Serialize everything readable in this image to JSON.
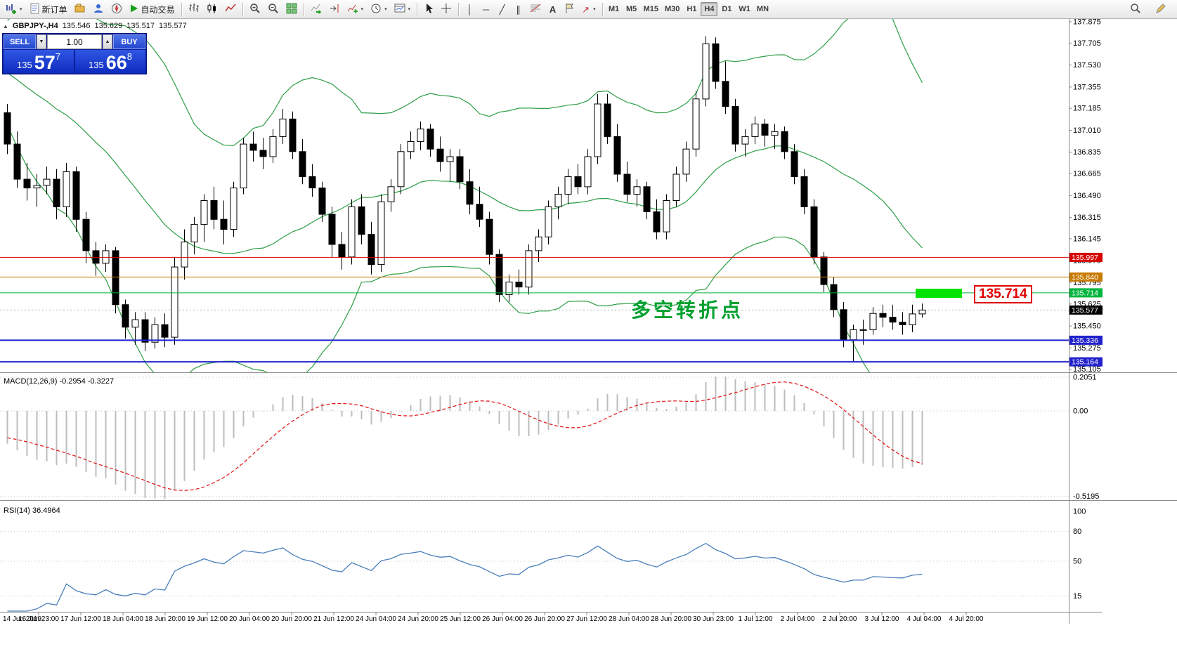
{
  "toolbar": {
    "new_order_label": "新订单",
    "auto_trading_label": "自动交易",
    "timeframes": [
      {
        "label": "M1",
        "active": false
      },
      {
        "label": "M5",
        "active": false
      },
      {
        "label": "M15",
        "active": false
      },
      {
        "label": "M30",
        "active": false
      },
      {
        "label": "H1",
        "active": false
      },
      {
        "label": "H4",
        "active": true
      },
      {
        "label": "D1",
        "active": false
      },
      {
        "label": "W1",
        "active": false
      },
      {
        "label": "MN",
        "active": false
      }
    ],
    "drawing_glyphs": {
      "vertical_line": "│",
      "horizontal_line": "─",
      "trendline": "╱",
      "channel": "∥",
      "text_tool": "A",
      "arrow": "↗"
    },
    "icon_names": [
      "new-chart-icon",
      "new-order-icon",
      "profiles-icon",
      "market-watch-icon",
      "navigator-icon",
      "auto-trading-icon",
      "bar-chart-icon",
      "candlestick-chart-icon",
      "line-chart-icon",
      "zoom-in-icon",
      "zoom-out-icon",
      "tile-windows-icon",
      "auto-scroll-icon",
      "chart-shift-icon",
      "indicators-icon",
      "periods-icon",
      "templates-icon",
      "cursor-icon",
      "crosshair-icon",
      "vertical-line-icon",
      "horizontal-line-icon",
      "trendline-icon",
      "channel-icon",
      "fibonacci-icon",
      "text-icon",
      "label-icon",
      "arrows-icon",
      "search-icon",
      "edit-icon"
    ]
  },
  "symbol_bar": {
    "symbol": "GBPJPY-,H4",
    "open": "135.546",
    "high": "135.629",
    "low": "135.517",
    "close": "135.577"
  },
  "order_panel": {
    "sell_label": "SELL",
    "buy_label": "BUY",
    "volume": "1.00",
    "sell_price": {
      "prefix": "135",
      "big": "57",
      "sup": "7"
    },
    "buy_price": {
      "prefix": "135",
      "big": "66",
      "sup": "8"
    }
  },
  "price_axis": {
    "ticks": [
      "137.875",
      "137.705",
      "137.530",
      "137.355",
      "137.185",
      "137.010",
      "136.835",
      "136.665",
      "136.490",
      "136.315",
      "136.145",
      "135.970",
      "135.795",
      "135.625",
      "135.450",
      "135.275",
      "135.105"
    ]
  },
  "levels": [
    {
      "label": "135.997",
      "price": 135.997,
      "color": "#d60000",
      "width": 1
    },
    {
      "label": "135.840",
      "price": 135.84,
      "color": "#c87a00",
      "width": 1
    },
    {
      "label": "135.714",
      "price": 135.714,
      "color": "#00b43c",
      "width": 1
    },
    {
      "label": "135.336",
      "price": 135.336,
      "color": "#2222cc",
      "width": 2
    },
    {
      "label": "135.164",
      "price": 135.164,
      "color": "#2222cc",
      "width": 2
    }
  ],
  "current_price": {
    "label": "135.577",
    "bg": "#000000"
  },
  "objects": {
    "annotation": {
      "text": "多空转折点",
      "color": "#00a02e"
    },
    "callout": {
      "text": "135.714",
      "color": "#e00000"
    },
    "highlight_rect": {
      "color": "#00e400"
    }
  },
  "macd_panel": {
    "label": "MACD(12,26,9) -0.2954 -0.3227",
    "scale": [
      {
        "value": 0.2051,
        "label": "0.2051"
      },
      {
        "value": 0,
        "label": "0.00"
      },
      {
        "value": -0.5195,
        "label": "-0.5195"
      }
    ]
  },
  "rsi_panel": {
    "label": "RSI(14) 36.4964",
    "scale": [
      {
        "value": 100,
        "label": "100"
      },
      {
        "value": 80,
        "label": "80"
      },
      {
        "value": 50,
        "label": "50"
      },
      {
        "value": 15,
        "label": "15"
      }
    ],
    "gridlines": [
      80,
      50,
      15
    ]
  },
  "time_axis": {
    "labels": [
      "14 Jun 2019",
      "16 Jun 23:00",
      "17 Jun 12:00",
      "18 Jun 04:00",
      "18 Jun 20:00",
      "19 Jun 12:00",
      "20 Jun 04:00",
      "20 Jun 20:00",
      "21 Jun 12:00",
      "24 Jun 04:00",
      "24 Jun 20:00",
      "25 Jun 12:00",
      "26 Jun 04:00",
      "26 Jun 20:00",
      "27 Jun 12:00",
      "28 Jun 04:00",
      "28 Jun 20:00",
      "30 Jun 23:00",
      "1 Jul 12:00",
      "2 Jul 04:00",
      "2 Jul 20:00",
      "3 Jul 12:00",
      "4 Jul 04:00",
      "4 Jul 20:00"
    ]
  },
  "chart_data": {
    "type": "candlestick",
    "symbol": "GBPJPY",
    "timeframe": "H4",
    "y_range": [
      135.105,
      137.875
    ],
    "indicators": [
      {
        "name": "Bollinger Bands",
        "period": 20,
        "deviation": 2
      },
      {
        "name": "MACD",
        "fast": 12,
        "slow": 26,
        "signal_period": 9,
        "macd_value": -0.2954,
        "signal_value": -0.3227
      },
      {
        "name": "RSI",
        "period": 14,
        "value": 36.4964
      }
    ],
    "colors": {
      "up": "#ffffff",
      "down": "#000000",
      "outline": "#000000",
      "bands": "#2d9e46",
      "histogram": "#bdbdbd",
      "signal": "#e01010",
      "rsi": "#4a7ebb"
    },
    "prehistory_closes": [
      138.1,
      138.07,
      138.04,
      138.01,
      137.98,
      137.95,
      137.92,
      137.89,
      137.86,
      137.83,
      137.8,
      137.77,
      137.74,
      137.71,
      137.68,
      137.65,
      137.62,
      137.59,
      137.56,
      137.53,
      137.5,
      137.47,
      137.44,
      137.41,
      137.38,
      137.35,
      137.32,
      137.29,
      137.26,
      137.2
    ],
    "candles": [
      [
        137.15,
        137.22,
        136.82,
        136.9
      ],
      [
        136.9,
        137.0,
        136.55,
        136.62
      ],
      [
        136.62,
        136.75,
        136.45,
        136.55
      ],
      [
        136.55,
        136.66,
        136.4,
        136.57
      ],
      [
        136.57,
        136.72,
        136.5,
        136.62
      ],
      [
        136.62,
        136.7,
        136.3,
        136.4
      ],
      [
        136.4,
        136.75,
        136.32,
        136.68
      ],
      [
        136.68,
        136.72,
        136.2,
        136.3
      ],
      [
        136.3,
        136.36,
        135.95,
        136.05
      ],
      [
        136.05,
        136.12,
        135.85,
        135.95
      ],
      [
        135.95,
        136.1,
        135.88,
        136.05
      ],
      [
        136.05,
        136.08,
        135.55,
        135.62
      ],
      [
        135.62,
        135.66,
        135.35,
        135.44
      ],
      [
        135.44,
        135.56,
        135.3,
        135.5
      ],
      [
        135.5,
        135.56,
        135.25,
        135.32
      ],
      [
        135.32,
        135.52,
        135.27,
        135.46
      ],
      [
        135.46,
        135.55,
        135.28,
        135.36
      ],
      [
        135.36,
        136.0,
        135.3,
        135.92
      ],
      [
        135.92,
        136.22,
        135.82,
        136.12
      ],
      [
        136.12,
        136.32,
        136.02,
        136.26
      ],
      [
        136.26,
        136.5,
        136.12,
        136.45
      ],
      [
        136.45,
        136.56,
        136.22,
        136.3
      ],
      [
        136.3,
        136.45,
        136.1,
        136.22
      ],
      [
        136.22,
        136.6,
        136.16,
        136.55
      ],
      [
        136.55,
        136.95,
        136.5,
        136.9
      ],
      [
        136.9,
        137.0,
        136.76,
        136.85
      ],
      [
        136.85,
        136.95,
        136.7,
        136.8
      ],
      [
        136.8,
        137.02,
        136.75,
        136.96
      ],
      [
        136.96,
        137.18,
        136.9,
        137.1
      ],
      [
        137.1,
        137.16,
        136.78,
        136.84
      ],
      [
        136.84,
        136.94,
        136.58,
        136.64
      ],
      [
        136.64,
        136.74,
        136.48,
        136.55
      ],
      [
        136.55,
        136.6,
        136.28,
        136.34
      ],
      [
        136.34,
        136.4,
        136.0,
        136.1
      ],
      [
        136.1,
        136.2,
        135.9,
        136.0
      ],
      [
        136.0,
        136.46,
        135.94,
        136.4
      ],
      [
        136.4,
        136.5,
        136.1,
        136.18
      ],
      [
        136.18,
        136.28,
        135.86,
        135.94
      ],
      [
        135.94,
        136.5,
        135.88,
        136.44
      ],
      [
        136.44,
        136.62,
        136.36,
        136.56
      ],
      [
        136.56,
        136.9,
        136.5,
        136.84
      ],
      [
        136.84,
        137.0,
        136.78,
        136.92
      ],
      [
        136.92,
        137.08,
        136.85,
        137.02
      ],
      [
        137.02,
        137.06,
        136.8,
        136.86
      ],
      [
        136.86,
        136.96,
        136.68,
        136.76
      ],
      [
        136.76,
        136.86,
        136.6,
        136.8
      ],
      [
        136.8,
        136.86,
        136.54,
        136.6
      ],
      [
        136.6,
        136.7,
        136.34,
        136.42
      ],
      [
        136.42,
        136.56,
        136.24,
        136.3
      ],
      [
        136.3,
        136.36,
        135.94,
        136.02
      ],
      [
        136.02,
        136.06,
        135.64,
        135.7
      ],
      [
        135.7,
        135.86,
        135.64,
        135.8
      ],
      [
        135.8,
        135.9,
        135.7,
        135.76
      ],
      [
        135.76,
        136.1,
        135.7,
        136.05
      ],
      [
        136.05,
        136.22,
        135.96,
        136.16
      ],
      [
        136.16,
        136.45,
        136.1,
        136.4
      ],
      [
        136.4,
        136.56,
        136.3,
        136.5
      ],
      [
        136.5,
        136.7,
        136.42,
        136.64
      ],
      [
        136.64,
        136.74,
        136.5,
        136.56
      ],
      [
        136.56,
        136.86,
        136.5,
        136.8
      ],
      [
        136.8,
        137.3,
        136.74,
        137.22
      ],
      [
        137.22,
        137.3,
        136.9,
        136.96
      ],
      [
        136.96,
        137.06,
        136.6,
        136.66
      ],
      [
        136.66,
        136.76,
        136.44,
        136.5
      ],
      [
        136.5,
        136.62,
        136.4,
        136.56
      ],
      [
        136.56,
        136.6,
        136.3,
        136.36
      ],
      [
        136.36,
        136.46,
        136.14,
        136.2
      ],
      [
        136.2,
        136.5,
        136.14,
        136.45
      ],
      [
        136.45,
        136.72,
        136.4,
        136.66
      ],
      [
        136.66,
        136.92,
        136.6,
        136.86
      ],
      [
        136.86,
        137.32,
        136.8,
        137.26
      ],
      [
        137.26,
        137.76,
        137.2,
        137.7
      ],
      [
        137.7,
        137.75,
        137.34,
        137.4
      ],
      [
        137.4,
        137.56,
        137.14,
        137.2
      ],
      [
        137.2,
        137.26,
        136.84,
        136.9
      ],
      [
        136.9,
        137.02,
        136.8,
        136.96
      ],
      [
        136.96,
        137.12,
        136.9,
        137.06
      ],
      [
        137.06,
        137.1,
        136.88,
        136.97
      ],
      [
        136.97,
        137.06,
        136.86,
        137.0
      ],
      [
        137.0,
        137.04,
        136.78,
        136.84
      ],
      [
        136.84,
        136.9,
        136.58,
        136.64
      ],
      [
        136.64,
        136.7,
        136.34,
        136.4
      ],
      [
        136.4,
        136.46,
        135.94,
        136.0
      ],
      [
        136.0,
        136.04,
        135.72,
        135.78
      ],
      [
        135.78,
        135.84,
        135.52,
        135.58
      ],
      [
        135.58,
        135.64,
        135.28,
        135.34
      ],
      [
        135.34,
        135.46,
        135.16,
        135.42
      ],
      [
        135.42,
        135.5,
        135.3,
        135.42
      ],
      [
        135.42,
        135.6,
        135.38,
        135.55
      ],
      [
        135.55,
        135.62,
        135.44,
        135.52
      ],
      [
        135.52,
        135.62,
        135.42,
        135.48
      ],
      [
        135.48,
        135.56,
        135.38,
        135.46
      ],
      [
        135.46,
        135.62,
        135.4,
        135.546
      ],
      [
        135.546,
        135.629,
        135.517,
        135.577
      ]
    ]
  }
}
